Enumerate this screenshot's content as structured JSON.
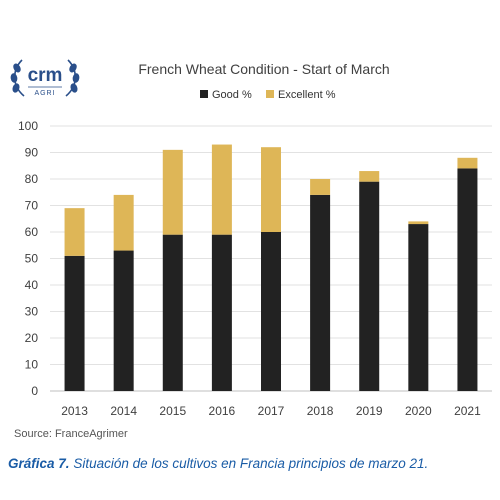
{
  "logo": {
    "text": "crm",
    "subtext": "AGRI"
  },
  "chart_data": {
    "type": "bar",
    "stacked": true,
    "title": "French Wheat Condition - Start of March",
    "categories": [
      "2013",
      "2014",
      "2015",
      "2016",
      "2017",
      "2018",
      "2019",
      "2020",
      "2021"
    ],
    "series": [
      {
        "name": "Good %",
        "color": "#222222",
        "values": [
          51,
          53,
          59,
          59,
          60,
          74,
          79,
          63,
          84
        ]
      },
      {
        "name": "Excellent %",
        "color": "#deb657",
        "values": [
          18,
          21,
          32,
          34,
          32,
          6,
          4,
          1,
          4
        ]
      }
    ],
    "ylim": [
      0,
      100
    ],
    "yticks": [
      0,
      10,
      20,
      30,
      40,
      50,
      60,
      70,
      80,
      90,
      100
    ],
    "grid": true,
    "legend": "top-center"
  },
  "source": "Source: FranceAgrimer",
  "caption": {
    "label": "Gráfica 7.",
    "text": "Situación de los cultivos en Francia principios de marzo 21."
  }
}
